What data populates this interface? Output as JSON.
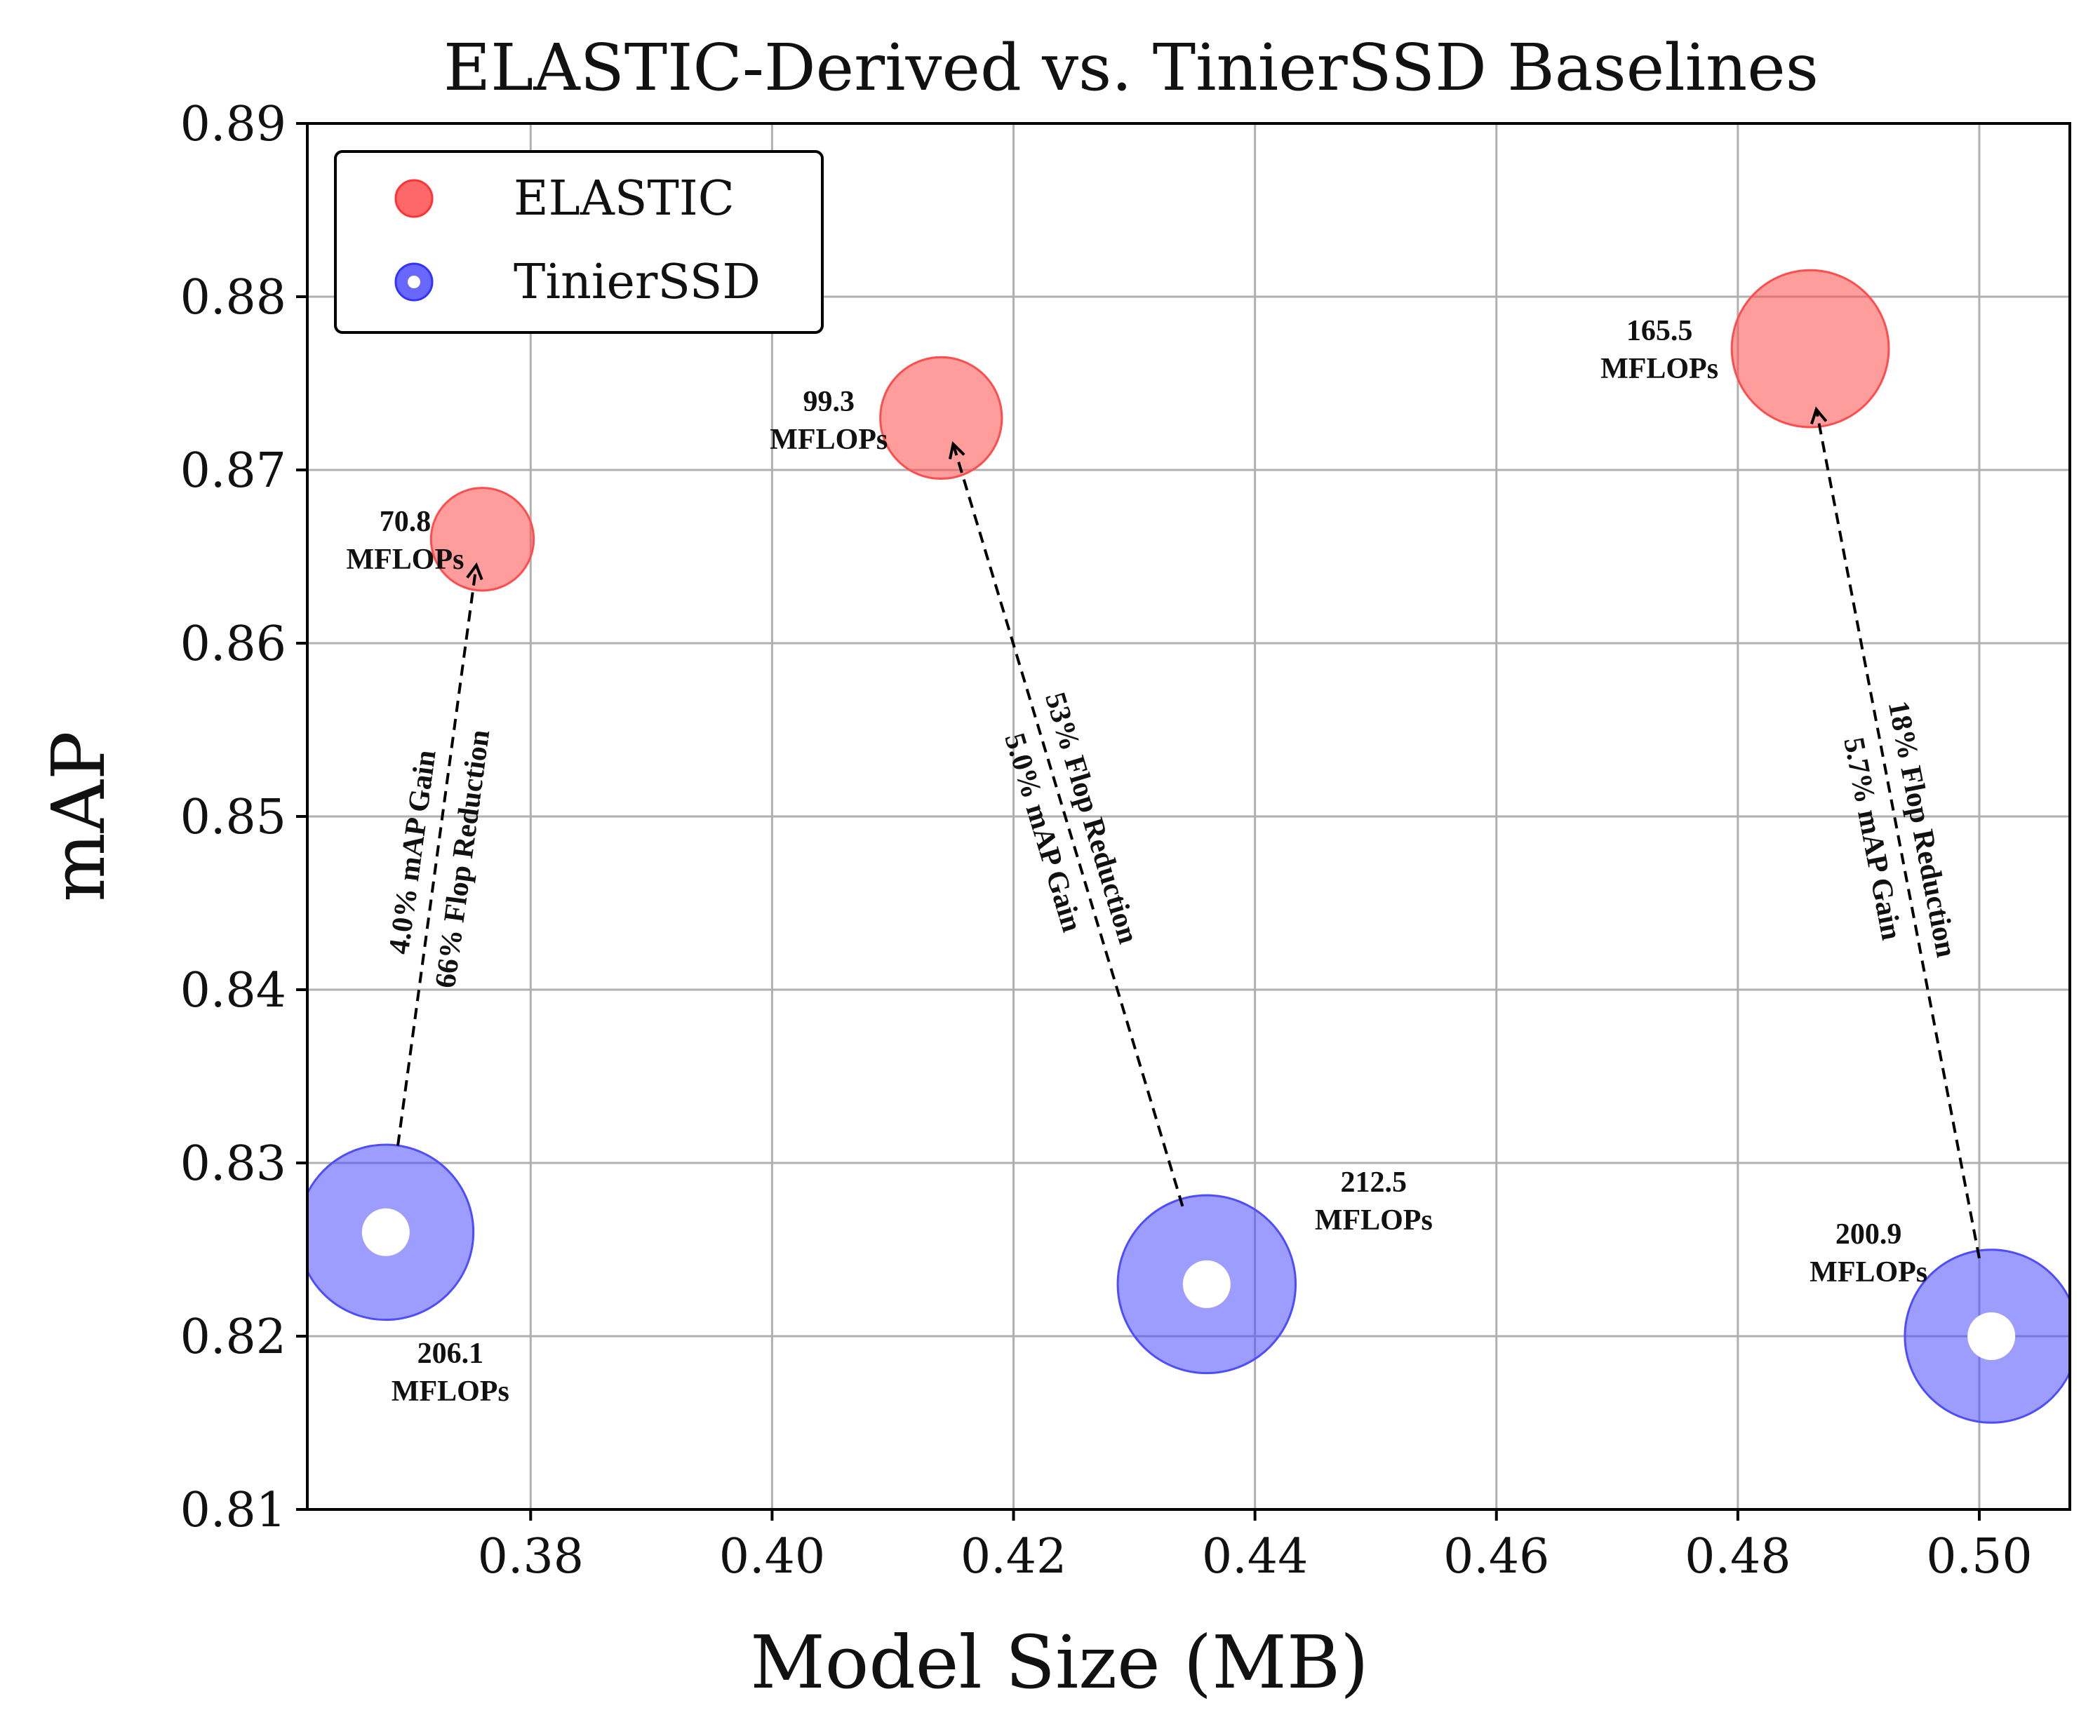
{
  "chart_data": {
    "type": "scatter",
    "title": "ELASTIC-Derived vs. TinierSSD Baselines",
    "xlabel": "Model Size (MB)",
    "ylabel": "mAP",
    "xlim": [
      0.3615,
      0.5075
    ],
    "ylim": [
      0.81,
      0.89
    ],
    "xticks": [
      "0.38",
      "0.40",
      "0.42",
      "0.44",
      "0.46",
      "0.48",
      "0.50"
    ],
    "xtick_values": [
      0.38,
      0.4,
      0.42,
      0.44,
      0.46,
      0.48,
      0.5
    ],
    "yticks": [
      "0.81",
      "0.82",
      "0.83",
      "0.84",
      "0.85",
      "0.86",
      "0.87",
      "0.88",
      "0.89"
    ],
    "ytick_values": [
      0.81,
      0.82,
      0.83,
      0.84,
      0.85,
      0.86,
      0.87,
      0.88,
      0.89
    ],
    "grid": true,
    "legend_position": "upper-left",
    "legend": [
      {
        "label": "ELASTIC",
        "series": "elastic"
      },
      {
        "label": "TinierSSD",
        "series": "tiniers"
      }
    ],
    "series": [
      {
        "name": "ELASTIC",
        "key": "elastic",
        "color": "#ff4d4d",
        "points": [
          {
            "x": 0.376,
            "y": 0.866,
            "mflops": 70.8,
            "label_line1": "70.8",
            "label_line2": "MFLOPs"
          },
          {
            "x": 0.414,
            "y": 0.873,
            "mflops": 99.3,
            "label_line1": "99.3",
            "label_line2": "MFLOPs"
          },
          {
            "x": 0.486,
            "y": 0.877,
            "mflops": 165.5,
            "label_line1": "165.5",
            "label_line2": "MFLOPs"
          }
        ]
      },
      {
        "name": "TinierSSD",
        "key": "tiniers",
        "color": "#4d4dff",
        "points": [
          {
            "x": 0.368,
            "y": 0.826,
            "mflops": 206.1,
            "label_line1": "206.1",
            "label_line2": "MFLOPs"
          },
          {
            "x": 0.436,
            "y": 0.823,
            "mflops": 212.5,
            "label_line1": "212.5",
            "label_line2": "MFLOPs"
          },
          {
            "x": 0.501,
            "y": 0.82,
            "mflops": 200.9,
            "label_line1": "200.9",
            "label_line2": "MFLOPs"
          }
        ]
      }
    ],
    "arrows": [
      {
        "from": [
          0.369,
          0.831
        ],
        "to": [
          0.3755,
          0.8645
        ],
        "line1": "4.0% mAP Gain",
        "line2": "66% Flop Reduction"
      },
      {
        "from": [
          0.434,
          0.8275
        ],
        "to": [
          0.415,
          0.8715
        ],
        "line1": "53% Flop Reduction",
        "line2": "5.0% mAP Gain"
      },
      {
        "from": [
          0.5,
          0.8245
        ],
        "to": [
          0.4865,
          0.8735
        ],
        "line1": "18% Flop Reduction",
        "line2": "5.7% mAP Gain"
      }
    ]
  }
}
